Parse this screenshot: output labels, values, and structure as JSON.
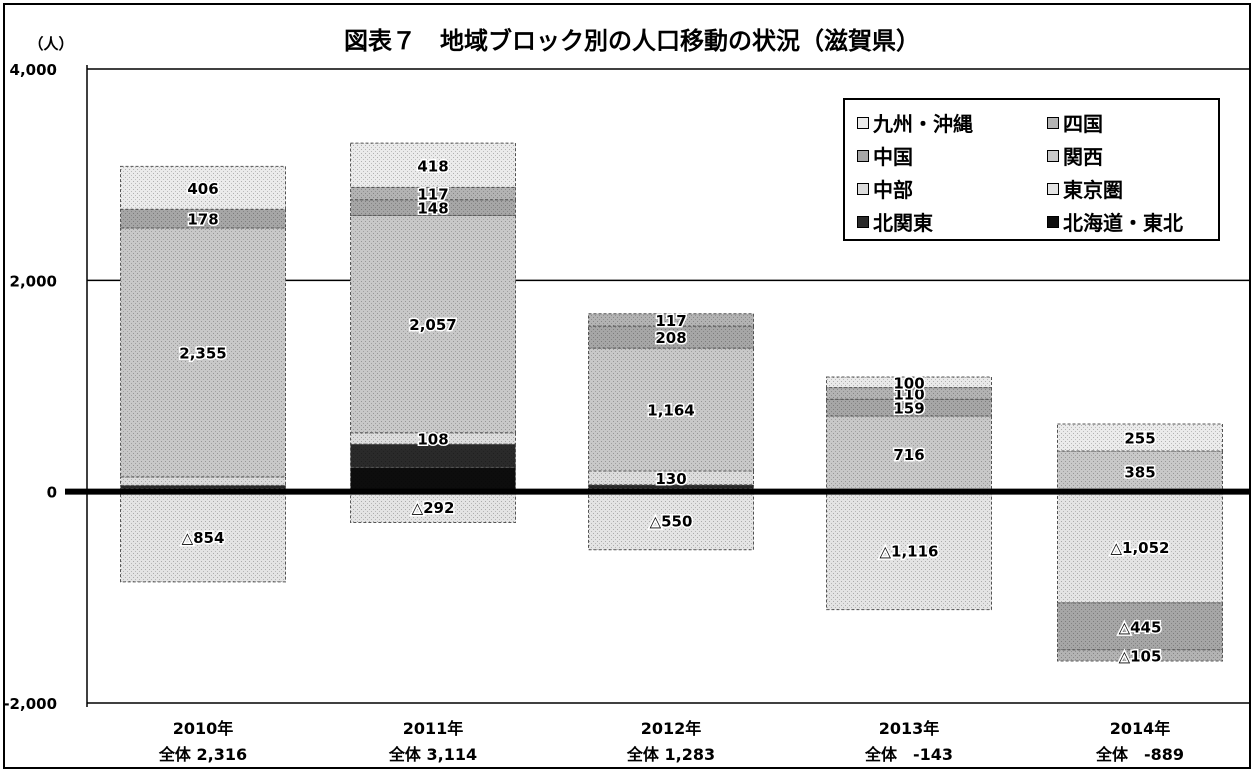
{
  "chart_data": {
    "type": "bar",
    "stacked": true,
    "title": "図表７　地域ブロック別の人口移動の状況（滋賀県）",
    "ylabel": "（人）",
    "ylim": [
      -2000,
      4000
    ],
    "yticks": [
      4000,
      2000,
      0,
      -2000
    ],
    "ytick_labels": [
      "4,000",
      "2,000",
      "0",
      "-2,000"
    ],
    "grid": true,
    "legend_position": "top-right",
    "categories": [
      "2010年",
      "2011年",
      "2012年",
      "2013年",
      "2014年"
    ],
    "category_totals": [
      "全体 2,316",
      "全体 3,114",
      "全体 1,283",
      "全体　-143",
      "全体　-889"
    ],
    "series": [
      {
        "name": "北海道・東北",
        "color": "#0d0d0d",
        "values": [
          30,
          230,
          30,
          0,
          0
        ],
        "labels": [
          "",
          "",
          "",
          "",
          ""
        ]
      },
      {
        "name": "北関東",
        "color": "#2a2a2a",
        "values": [
          30,
          220,
          35,
          0,
          0
        ],
        "labels": [
          "",
          "",
          "",
          "",
          ""
        ]
      },
      {
        "name": "東京圏",
        "color": "#e4e4e4",
        "values": [
          -854,
          -292,
          -550,
          -1116,
          -1052
        ],
        "labels": [
          "△854",
          "△292",
          "△550",
          "△1,116",
          "△1,052"
        ]
      },
      {
        "name": "中部",
        "color": "#dcdcdc",
        "values": [
          80,
          108,
          130,
          0,
          0
        ],
        "labels": [
          "",
          "108",
          "130",
          "",
          ""
        ]
      },
      {
        "name": "関西",
        "color": "#c8c8c8",
        "values": [
          2355,
          2057,
          1164,
          716,
          385
        ],
        "labels": [
          "2,355",
          "2,057",
          "1,164",
          "716",
          "385"
        ]
      },
      {
        "name": "中国",
        "color": "#a6a6a6",
        "values": [
          178,
          148,
          208,
          159,
          -445
        ],
        "labels": [
          "178",
          "148",
          "208",
          "159",
          "△445"
        ]
      },
      {
        "name": "四国",
        "color": "#b3b3b3",
        "values": [
          0,
          117,
          117,
          110,
          -105
        ],
        "labels": [
          "",
          "117",
          "117",
          "110",
          "△105"
        ]
      },
      {
        "name": "九州・沖縄",
        "color": "#ebebeb",
        "values": [
          406,
          418,
          0,
          100,
          255
        ],
        "labels": [
          "406",
          "418",
          "",
          "100",
          "255"
        ]
      }
    ]
  }
}
